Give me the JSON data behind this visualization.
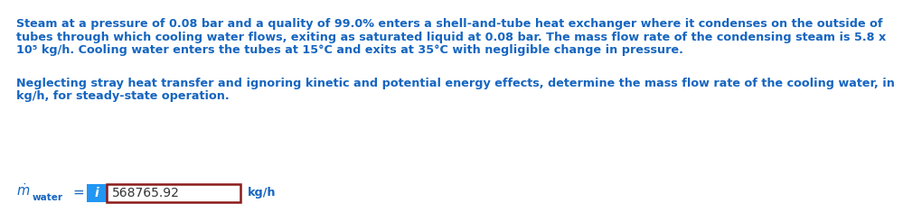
{
  "para1_line1": "Steam at a pressure of 0.08 bar and a quality of 99.0% enters a shell-and-tube heat exchanger where it condenses on the outside of",
  "para1_line2": "tubes through which cooling water flows, exiting as saturated liquid at 0.08 bar. The mass flow rate of the condensing steam is 5.8 x",
  "para1_line3": "10⁵ kg/h. Cooling water enters the tubes at 15°C and exits at 35°C with negligible change in pressure.",
  "para2_line1": "Neglecting stray heat transfer and ignoring kinetic and potential energy effects, determine the mass flow rate of the cooling water, in",
  "para2_line2": "kg/h, for steady-state operation.",
  "info_btn_color": "#2196F3",
  "info_btn_text": "i",
  "answer_value": "568765.92",
  "answer_box_border_color": "#8B1A1A",
  "answer_box_fill": "#ffffff",
  "unit": "kg/h",
  "text_color": "#1565C0",
  "bg_color": "#ffffff",
  "font_size_body": 9.2,
  "font_size_answer": 10.0,
  "font_size_label": 10.5
}
